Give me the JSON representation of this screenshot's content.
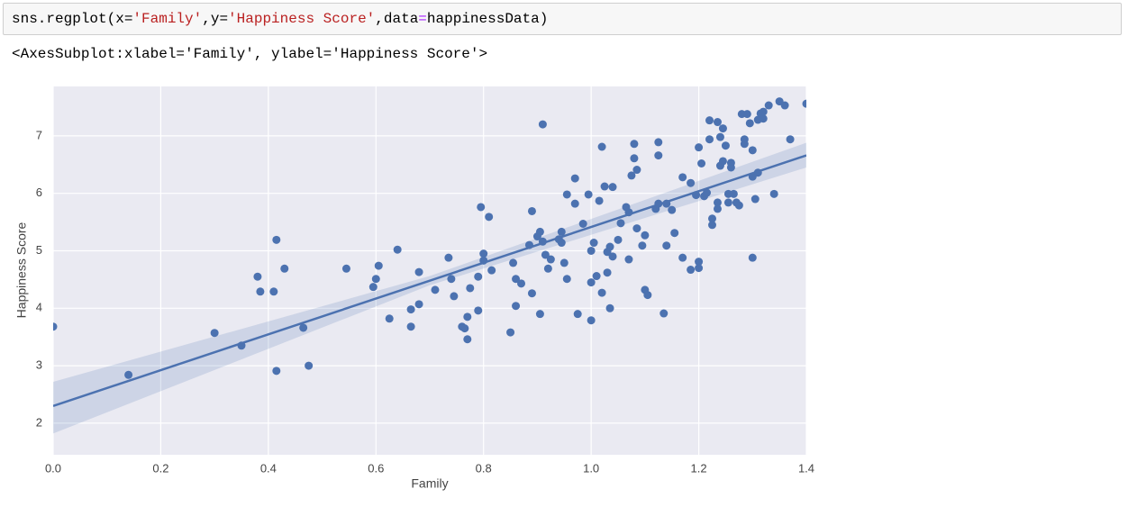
{
  "code_cell": {
    "tokens": [
      {
        "text": "sns.regplot(x=",
        "color": "#000000"
      },
      {
        "text": "'Family'",
        "color": "#ba2121"
      },
      {
        "text": ",y=",
        "color": "#000000"
      },
      {
        "text": "'Happiness Score'",
        "color": "#ba2121"
      },
      {
        "text": ",data",
        "color": "#000000"
      },
      {
        "text": "=",
        "color": "#aa22ff"
      },
      {
        "text": "happinessData)",
        "color": "#000000"
      }
    ]
  },
  "output_text": "<AxesSubplot:xlabel='Family', ylabel='Happiness Score'>",
  "chart_data": {
    "type": "regplot",
    "x_label": "Family",
    "y_label": "Happiness Score",
    "xlim": [
      0,
      1.4
    ],
    "ylim": [
      1.45,
      7.86
    ],
    "xticks": [
      {
        "value": 0,
        "label": "0.0"
      },
      0.2,
      0.4,
      0.6,
      0.8,
      {
        "value": 1,
        "label": "1.0"
      },
      1.2,
      1.4
    ],
    "yticks": [
      2,
      3,
      4,
      5,
      6,
      7
    ],
    "grid": true,
    "background": "#eaeaf2",
    "color": "#4c72b0",
    "regression": {
      "x": [
        0,
        1.4
      ],
      "y": [
        2.3,
        6.66
      ]
    },
    "band": {
      "x": [
        0,
        0.7,
        1.4
      ],
      "lower": [
        1.82,
        4.4,
        6.45
      ],
      "upper": [
        2.72,
        4.56,
        6.88
      ]
    },
    "x": [
      0,
      0.14,
      0.3,
      0.35,
      0.38,
      0.385,
      0.41,
      0.415,
      0.415,
      0.43,
      0.465,
      0.475,
      0.545,
      0.595,
      0.6,
      0.605,
      0.625,
      0.64,
      0.665,
      0.665,
      0.68,
      0.68,
      0.71,
      0.735,
      0.74,
      0.745,
      0.76,
      0.765,
      0.77,
      0.77,
      0.775,
      0.79,
      0.79,
      0.795,
      0.8,
      0.8,
      0.81,
      0.815,
      0.85,
      0.855,
      0.86,
      0.86,
      0.87,
      0.885,
      0.89,
      0.89,
      0.9,
      0.905,
      0.905,
      0.91,
      0.91,
      0.915,
      0.92,
      0.925,
      0.94,
      0.945,
      0.945,
      0.95,
      0.955,
      0.955,
      0.97,
      0.97,
      0.975,
      0.985,
      0.995,
      1,
      1,
      1,
      1.005,
      1.01,
      1.015,
      1.02,
      1.02,
      1.025,
      1.03,
      1.03,
      1.035,
      1.035,
      1.04,
      1.04,
      1.05,
      1.055,
      1.065,
      1.07,
      1.07,
      1.075,
      1.08,
      1.08,
      1.085,
      1.085,
      1.095,
      1.1,
      1.1,
      1.105,
      1.12,
      1.125,
      1.125,
      1.125,
      1.135,
      1.14,
      1.14,
      1.15,
      1.155,
      1.17,
      1.17,
      1.185,
      1.185,
      1.195,
      1.2,
      1.2,
      1.2,
      1.205,
      1.21,
      1.215,
      1.22,
      1.22,
      1.225,
      1.225,
      1.235,
      1.235,
      1.235,
      1.24,
      1.24,
      1.245,
      1.245,
      1.25,
      1.255,
      1.255,
      1.26,
      1.26,
      1.265,
      1.27,
      1.275,
      1.28,
      1.285,
      1.285,
      1.29,
      1.295,
      1.3,
      1.3,
      1.3,
      1.305,
      1.31,
      1.31,
      1.315,
      1.32,
      1.32,
      1.33,
      1.34,
      1.35,
      1.36,
      1.37,
      1.4
    ],
    "y": [
      3.68,
      2.84,
      3.57,
      3.35,
      4.55,
      4.29,
      4.29,
      5.19,
      2.91,
      4.69,
      3.66,
      3,
      4.69,
      4.37,
      4.51,
      4.74,
      3.82,
      5.02,
      3.98,
      3.68,
      4.63,
      4.07,
      4.32,
      4.88,
      4.51,
      4.21,
      3.68,
      3.65,
      3.85,
      3.46,
      4.35,
      4.55,
      3.96,
      5.76,
      4.83,
      4.95,
      5.59,
      4.66,
      3.58,
      4.79,
      4.04,
      4.51,
      4.43,
      5.1,
      4.26,
      5.69,
      5.25,
      3.9,
      5.33,
      5.16,
      7.2,
      4.93,
      4.69,
      4.85,
      5.2,
      5.33,
      5.14,
      4.79,
      4.51,
      5.98,
      5.82,
      6.26,
      3.9,
      5.47,
      5.98,
      4.45,
      3.79,
      5,
      5.14,
      4.56,
      5.87,
      6.81,
      4.27,
      6.12,
      4.98,
      4.62,
      4,
      5.07,
      4.9,
      6.11,
      5.19,
      5.48,
      5.76,
      5.67,
      4.85,
      6.31,
      6.61,
      6.86,
      6.41,
      5.39,
      5.09,
      4.32,
      5.27,
      4.23,
      5.73,
      5.82,
      6.66,
      6.89,
      3.91,
      5.09,
      5.82,
      5.71,
      5.31,
      4.88,
      6.28,
      6.18,
      4.67,
      5.97,
      6.8,
      4.7,
      4.81,
      6.52,
      5.95,
      6.01,
      6.94,
      7.27,
      5.56,
      5.45,
      5.73,
      5.84,
      7.24,
      6.98,
      6.48,
      7.13,
      6.56,
      6.83,
      5.99,
      5.84,
      6.53,
      6.45,
      5.99,
      5.84,
      5.79,
      7.38,
      6.94,
      6.86,
      7.38,
      7.22,
      6.75,
      4.88,
      6.29,
      5.9,
      6.36,
      7.28,
      7.39,
      7.3,
      7.42,
      7.53,
      5.99,
      7.6,
      7.53,
      6.94,
      7.56
    ]
  }
}
